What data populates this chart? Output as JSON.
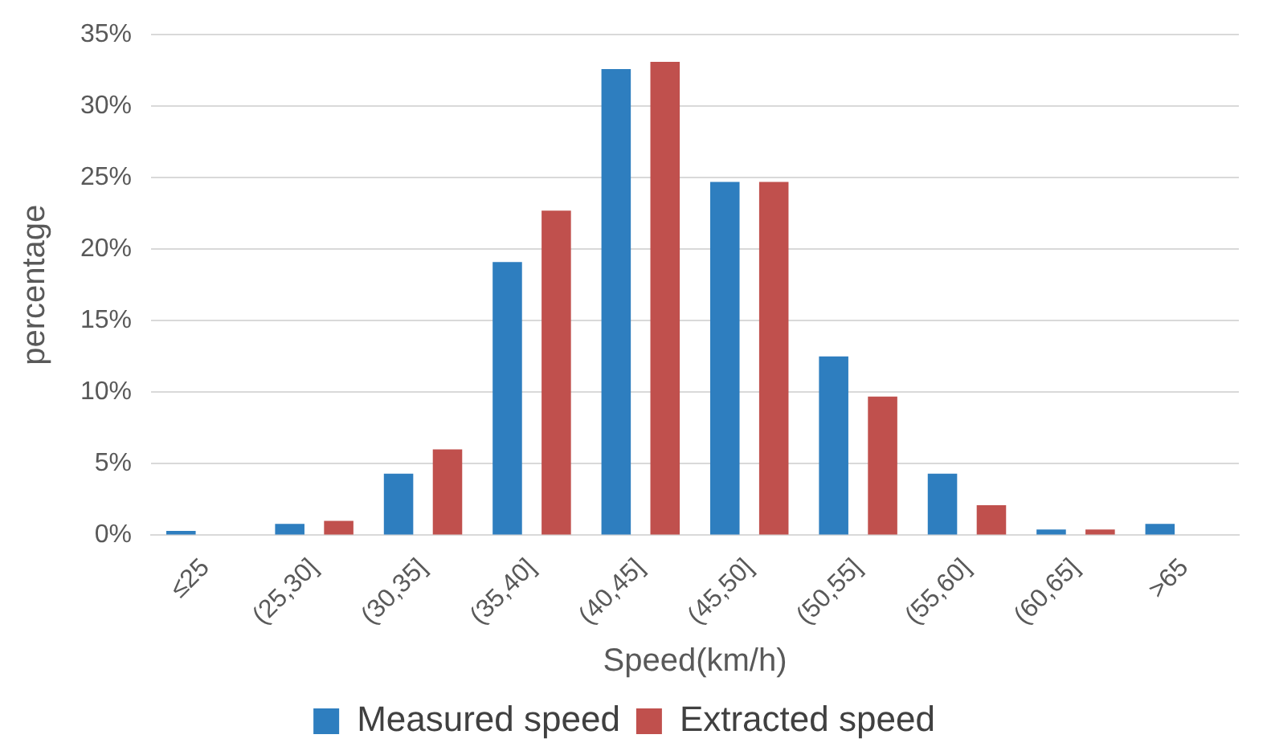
{
  "chart_data": {
    "type": "bar",
    "xlabel": "Speed(km/h)",
    "ylabel": "percentage",
    "categories": [
      "≤25",
      "(25,30]",
      "(30,35]",
      "(35,40]",
      "(40,45]",
      "(45,50]",
      "(50,55]",
      "(55,60]",
      "(60,65]",
      ">65"
    ],
    "series": [
      {
        "name": "Measured speed",
        "color": "#2e7ebf",
        "values": [
          0.3,
          0.8,
          4.3,
          19.1,
          32.6,
          24.7,
          12.5,
          4.3,
          0.4,
          0.8
        ]
      },
      {
        "name": "Extracted speed",
        "color": "#c0504d",
        "values": [
          0,
          1.0,
          6.0,
          22.7,
          33.1,
          24.7,
          9.7,
          2.1,
          0.4,
          0
        ]
      }
    ],
    "ylim": [
      0,
      35
    ],
    "yticks": [
      {
        "value": 0,
        "label": "0%"
      },
      {
        "value": 5,
        "label": "5%"
      },
      {
        "value": 10,
        "label": "10%"
      },
      {
        "value": 15,
        "label": "15%"
      },
      {
        "value": 20,
        "label": "20%"
      },
      {
        "value": 25,
        "label": "25%"
      },
      {
        "value": 30,
        "label": "30%"
      },
      {
        "value": 35,
        "label": "35%"
      }
    ],
    "grid": "y",
    "legend": "bottom"
  }
}
